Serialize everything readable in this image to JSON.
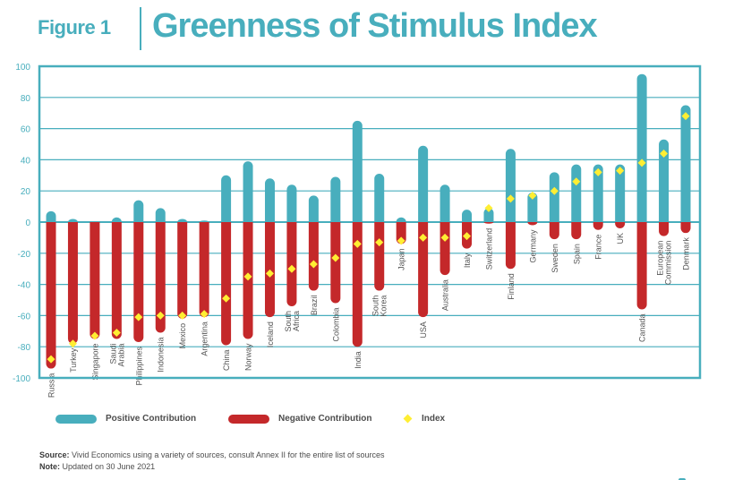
{
  "header": {
    "figure_label": "Figure 1",
    "title": "Greenness of Stimulus Index"
  },
  "colors": {
    "positive": "#48aebd",
    "negative": "#c4282a",
    "index": "#ffee33",
    "axis": "#48aebd",
    "tick_text": "#48aebd",
    "label_text": "#555555"
  },
  "legend": {
    "positive_label": "Positive Contribution",
    "negative_label": "Negative Contribution",
    "index_label": "Index"
  },
  "footnotes": {
    "source_label": "Source:",
    "source_text": " Vivid Economics using a variety of sources, consult Annex II for the entire list of sources",
    "note_label": "Note:",
    "note_text": " Updated on 30 June 2021"
  },
  "chart_data": {
    "type": "bar",
    "title": "Greenness of Stimulus Index",
    "xlabel": "",
    "ylabel": "",
    "ylim": [
      -100,
      100
    ],
    "yticks": [
      100,
      80,
      60,
      40,
      20,
      0,
      -20,
      -40,
      -60,
      -80,
      -100
    ],
    "grid": true,
    "legend_position": "bottom",
    "categories": [
      "Russia",
      "Turkey",
      "Singapore",
      "Saudi Arabia",
      "Philippines",
      "Indonesia",
      "Mexico",
      "Argentina",
      "China",
      "Norway",
      "Iceland",
      "South Africa",
      "Brazil",
      "Colombia",
      "India",
      "South Korea",
      "Japan",
      "USA",
      "Australia",
      "Italy",
      "Switzerland",
      "Finland",
      "Germany",
      "Sweden",
      "Spain",
      "France",
      "UK",
      "Canada",
      "European Commission",
      "Denmark"
    ],
    "category_label_lines": [
      [
        "Russia"
      ],
      [
        "Turkey"
      ],
      [
        "Singapore"
      ],
      [
        "Saudi",
        "Arabia"
      ],
      [
        "Philippines"
      ],
      [
        "Indonesia"
      ],
      [
        "Mexico"
      ],
      [
        "Argentina"
      ],
      [
        "China"
      ],
      [
        "Norway"
      ],
      [
        "Iceland"
      ],
      [
        "South",
        "Africa"
      ],
      [
        "Brazil"
      ],
      [
        "Colombia"
      ],
      [
        "India"
      ],
      [
        "South",
        "Korea"
      ],
      [
        "Japan"
      ],
      [
        "USA"
      ],
      [
        "Australia"
      ],
      [
        "Italy"
      ],
      [
        "Switzerland"
      ],
      [
        "Finland"
      ],
      [
        "Germany"
      ],
      [
        "Sweden"
      ],
      [
        "Spain"
      ],
      [
        "France"
      ],
      [
        "UK"
      ],
      [
        "Canada"
      ],
      [
        "European",
        "Commission"
      ],
      [
        "Denmark"
      ]
    ],
    "series": [
      {
        "name": "Positive Contribution",
        "kind": "bar",
        "values": [
          7,
          2,
          0,
          3,
          14,
          9,
          2,
          1,
          30,
          39,
          28,
          24,
          17,
          29,
          65,
          31,
          3,
          49,
          24,
          8,
          9,
          47,
          19,
          32,
          37,
          37,
          37,
          95,
          53,
          75
        ]
      },
      {
        "name": "Negative Contribution",
        "kind": "bar",
        "values": [
          -94,
          -78,
          -75,
          -75,
          -77,
          -71,
          -62,
          -61,
          -79,
          -75,
          -61,
          -54,
          -44,
          -52,
          -80,
          -44,
          -14,
          -61,
          -34,
          -17,
          -1,
          -30,
          -2,
          -11,
          -11,
          -5,
          -4,
          -56,
          -9,
          -7
        ]
      },
      {
        "name": "Index",
        "kind": "marker",
        "values": [
          -88,
          -78,
          -73,
          -71,
          -61,
          -60,
          -60,
          -59,
          -49,
          -35,
          -33,
          -30,
          -27,
          -23,
          -14,
          -13,
          -12,
          -10,
          -10,
          -9,
          9,
          15,
          17,
          20,
          26,
          32,
          33,
          38,
          44,
          68
        ]
      }
    ]
  }
}
